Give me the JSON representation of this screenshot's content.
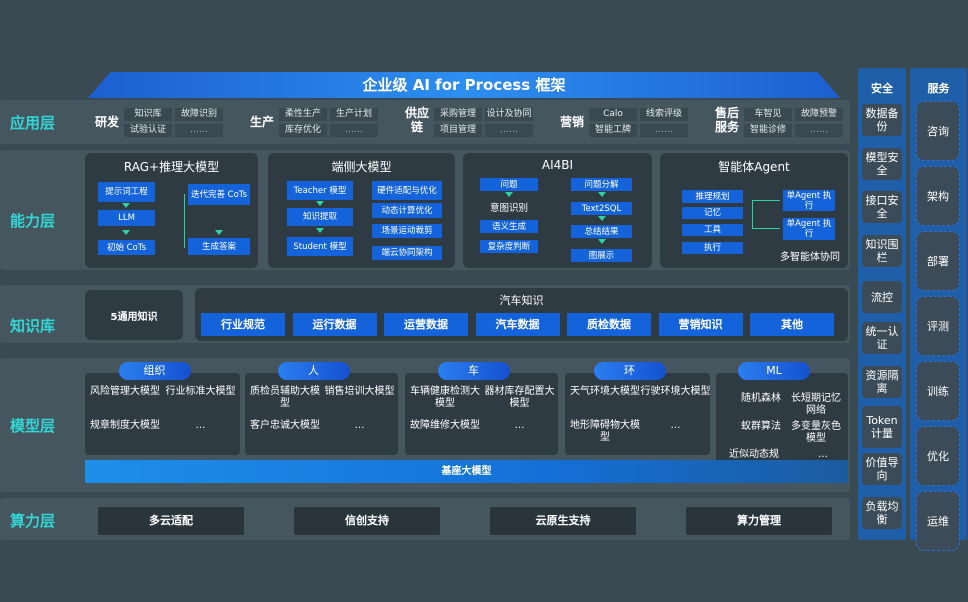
{
  "title": "企业级 AI for Process 框架",
  "layers": {
    "app": "应用层",
    "capability": "能力层",
    "knowledge": "知识库",
    "model": "模型层",
    "compute": "算力层"
  },
  "app_groups": [
    {
      "name": "研发",
      "items": [
        "知识库",
        "故障识别",
        "试验认证",
        "……"
      ]
    },
    {
      "name": "生产",
      "items": [
        "柔性生产",
        "生产计划",
        "库存优化",
        "……"
      ]
    },
    {
      "name": "供应链",
      "items": [
        "采购管理",
        "设计及协同",
        "项目管理",
        "……"
      ]
    },
    {
      "name": "营销",
      "items": [
        "Calo",
        "线索评级",
        "智能工牌",
        "……"
      ]
    },
    {
      "name": "售后服务",
      "items": [
        "车智见",
        "故障预警",
        "智能诊修",
        "……"
      ]
    }
  ],
  "capabilities": {
    "rag": {
      "title": "RAG+推理大模型",
      "chips": [
        "提示词工程",
        "LLM",
        "初始 CoTs",
        "迭代完善 CoTs",
        "生成答案"
      ]
    },
    "edge": {
      "title": "端侧大模型",
      "chips": [
        "Teacher 模型",
        "知识提取",
        "Student 模型",
        "硬件适配与优化",
        "动态计算优化",
        "场景运动裁剪",
        "端云协同架构"
      ]
    },
    "ai4bi": {
      "title": "AI4BI",
      "chips": [
        "问题",
        "语义生成",
        "复杂度判断",
        "问题分解",
        "Text2SQL",
        "总结结果",
        "图展示"
      ],
      "text": "意图识别"
    },
    "agent": {
      "title": "智能体Agent",
      "chips": [
        "推理规划",
        "记忆",
        "工具",
        "执行",
        "单Agent 执行",
        "单Agent 执行"
      ],
      "text": "多智能体协同"
    }
  },
  "knowledge": {
    "general": "5通用知识",
    "auto_title": "汽车知识",
    "items": [
      "行业规范",
      "运行数据",
      "运营数据",
      "汽车数据",
      "质检数据",
      "营销知识",
      "其他"
    ]
  },
  "model_groups": [
    {
      "name": "组织",
      "items": [
        "风险管理大模型",
        "行业标准大模型",
        "规章制度大模型",
        "…"
      ]
    },
    {
      "name": "人",
      "items": [
        "质检员辅助大模型",
        "销售培训大模型",
        "客户忠诚大模型",
        "…"
      ]
    },
    {
      "name": "车",
      "items": [
        "车辆健康检测大模型",
        "器材库存配置大模型",
        "故障维修大模型",
        "…"
      ]
    },
    {
      "name": "环",
      "items": [
        "天气环境大模型",
        "行驶环境大模型",
        "地形障碍物大模型",
        "…"
      ]
    },
    {
      "name": "ML",
      "items": [
        "随机森林",
        "长短期记忆网络",
        "蚁群算法",
        "多变量灰色模型",
        "近似动态规划",
        "…"
      ]
    }
  ],
  "base_model": "基座大模型",
  "compute": [
    "多云适配",
    "信创支持",
    "云原生支持",
    "算力管理"
  ],
  "security": {
    "title": "安全",
    "items": [
      "数据备份",
      "模型安全",
      "接口安全",
      "知识围栏",
      "流控",
      "统一认证",
      "资源隔离",
      "Token计量",
      "价值导向",
      "负载均衡"
    ]
  },
  "services": {
    "title": "服务",
    "items": [
      "咨询",
      "架构",
      "部署",
      "评测",
      "训练",
      "优化",
      "运维"
    ]
  }
}
